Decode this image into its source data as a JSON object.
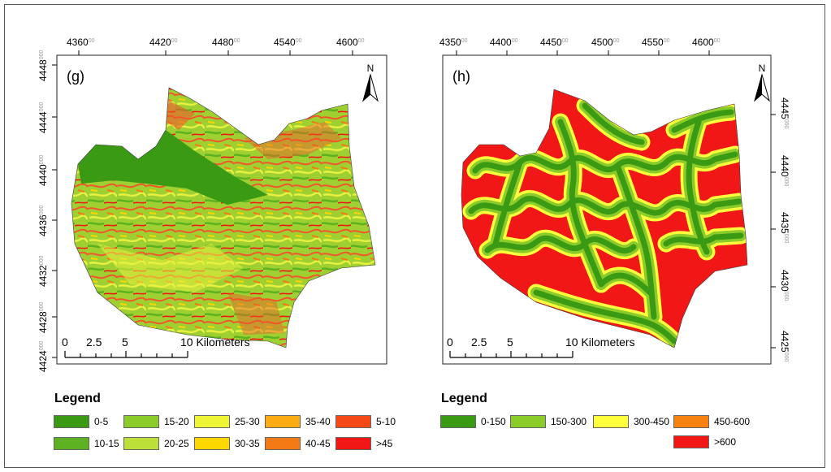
{
  "panels": [
    {
      "id": "g",
      "label": "(g)",
      "north": "N",
      "top_ticks": [
        {
          "main": "4360",
          "sup": "00"
        },
        {
          "main": "4420",
          "sup": "00"
        },
        {
          "main": "4480",
          "sup": "00"
        },
        {
          "main": "4540",
          "sup": "00"
        },
        {
          "main": "4600",
          "sup": "00"
        }
      ],
      "side_ticks": [
        {
          "main": "4448",
          "sup": "000"
        },
        {
          "main": "4444",
          "sup": "000"
        },
        {
          "main": "4440",
          "sup": "000"
        },
        {
          "main": "4436",
          "sup": "000"
        },
        {
          "main": "4432",
          "sup": "000"
        },
        {
          "main": "4428",
          "sup": "000"
        },
        {
          "main": "4424",
          "sup": "000"
        }
      ],
      "scalebar": {
        "labels": [
          "0",
          "2.5",
          "5",
          "10 Kilometers"
        ]
      },
      "legend": {
        "title": "Legend",
        "items": [
          {
            "label": "0-5",
            "color": "#3a9a14"
          },
          {
            "label": "10-15",
            "color": "#5cb220"
          },
          {
            "label": "15-20",
            "color": "#8ccc2a"
          },
          {
            "label": "20-25",
            "color": "#bde038"
          },
          {
            "label": "25-30",
            "color": "#eef536"
          },
          {
            "label": "30-35",
            "color": "#fcd800"
          },
          {
            "label": "35-40",
            "color": "#fcac12"
          },
          {
            "label": "40-45",
            "color": "#f37a14"
          },
          {
            "label": "5-10",
            "color": "#f54a18"
          },
          {
            "label": ">45",
            "color": "#f21717"
          }
        ]
      }
    },
    {
      "id": "h",
      "label": "(h)",
      "north": "N",
      "top_ticks": [
        {
          "main": "4350",
          "sup": "00"
        },
        {
          "main": "4400",
          "sup": "00"
        },
        {
          "main": "4450",
          "sup": "00"
        },
        {
          "main": "4500",
          "sup": "00"
        },
        {
          "main": "4550",
          "sup": "00"
        },
        {
          "main": "4600",
          "sup": "00"
        }
      ],
      "side_ticks": [
        {
          "main": "4445",
          "sup": "000"
        },
        {
          "main": "4440",
          "sup": "000"
        },
        {
          "main": "4435",
          "sup": "000"
        },
        {
          "main": "4430",
          "sup": "000"
        },
        {
          "main": "4425",
          "sup": "000"
        }
      ],
      "scalebar": {
        "labels": [
          "0",
          "2.5",
          "5",
          "10 Kilometers"
        ]
      },
      "legend": {
        "title": "Legend",
        "items": [
          {
            "label": "0-150",
            "color": "#3a9a14"
          },
          {
            "label": "150-300",
            "color": "#8ccc2a"
          },
          {
            "label": "300-450",
            "color": "#ffff3c"
          },
          {
            "label": "450-600",
            "color": "#f7820f"
          },
          {
            "label": ">600",
            "color": "#f21717"
          }
        ]
      }
    }
  ]
}
